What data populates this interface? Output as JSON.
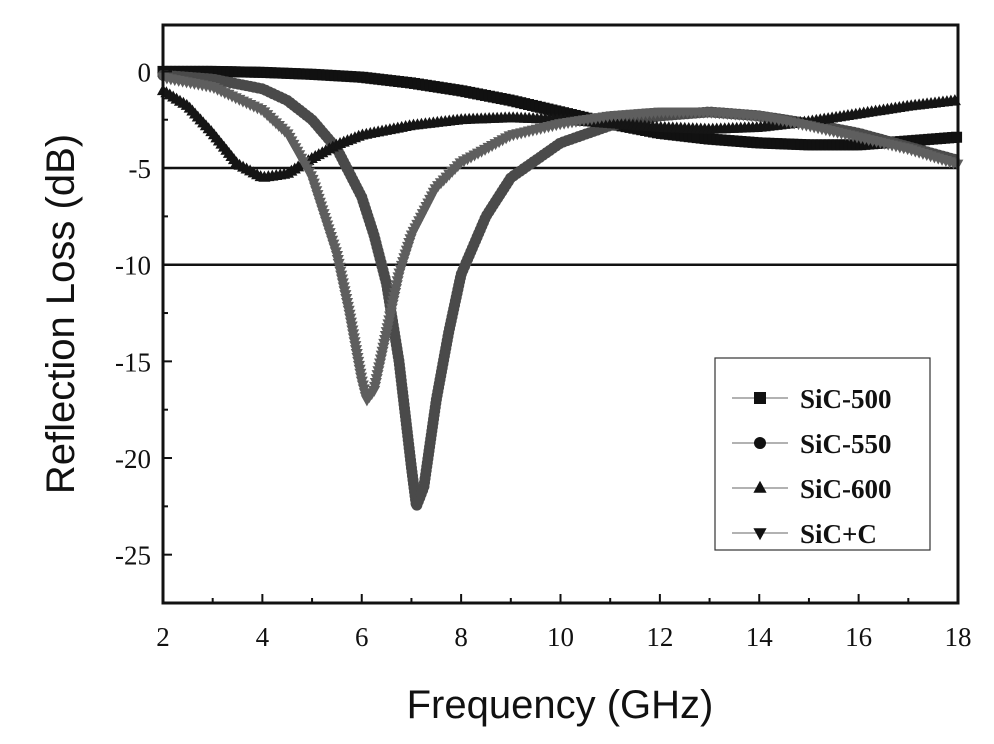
{
  "chart_data": {
    "type": "line",
    "title": "",
    "xlabel": "Frequency (GHz)",
    "ylabel": "Reflection Loss (dB)",
    "xlim": [
      2,
      18
    ],
    "ylim": [
      -27.5,
      2.4
    ],
    "xticks": [
      2,
      4,
      6,
      8,
      10,
      12,
      14,
      16,
      18
    ],
    "xtick_labels": [
      "2",
      "4",
      "6",
      "8",
      "10",
      "12",
      "14",
      "16",
      "18"
    ],
    "yticks": [
      0,
      -5,
      -10,
      -15,
      -20,
      -25
    ],
    "ytick_labels": [
      "0",
      "-5",
      "-10",
      "-15",
      "-20",
      "-25"
    ],
    "reference_lines_y": [
      -5,
      -10
    ],
    "grid": false,
    "legend_position": "bottom-right",
    "series": [
      {
        "name": "SiC-500",
        "marker": "square",
        "color": "#111111",
        "x": [
          2,
          3,
          4,
          5,
          6,
          7,
          8,
          9,
          10,
          11,
          12,
          13,
          14,
          15,
          16,
          17,
          18
        ],
        "y": [
          0,
          0,
          -0.05,
          -0.15,
          -0.3,
          -0.6,
          -1.0,
          -1.5,
          -2.1,
          -2.7,
          -3.2,
          -3.5,
          -3.7,
          -3.8,
          -3.8,
          -3.6,
          -3.4
        ]
      },
      {
        "name": "SiC-550",
        "marker": "circle",
        "color": "#4a4a4a",
        "x": [
          2,
          3,
          4,
          4.5,
          5,
          5.5,
          6,
          6.25,
          6.5,
          6.75,
          7,
          7.1,
          7.25,
          7.5,
          7.75,
          8,
          8.5,
          9,
          10,
          11,
          12,
          13,
          14,
          15,
          16,
          17,
          18
        ],
        "y": [
          -0.2,
          -0.4,
          -0.9,
          -1.5,
          -2.5,
          -4.0,
          -6.5,
          -8.5,
          -11,
          -15,
          -20.5,
          -22.5,
          -21.5,
          -17,
          -13.5,
          -10.5,
          -7.5,
          -5.5,
          -3.7,
          -2.8,
          -2.3,
          -2.1,
          -2.3,
          -2.7,
          -3.2,
          -3.9,
          -4.6
        ]
      },
      {
        "name": "SiC-600",
        "marker": "triangle-up",
        "color": "#151515",
        "x": [
          2,
          2.5,
          3,
          3.5,
          4,
          4.5,
          5,
          5.5,
          6,
          7,
          8,
          9,
          10,
          11,
          12,
          13,
          14,
          15,
          16,
          17,
          18
        ],
        "y": [
          -1.0,
          -1.8,
          -3.2,
          -4.8,
          -5.5,
          -5.3,
          -4.5,
          -3.8,
          -3.3,
          -2.8,
          -2.5,
          -2.4,
          -2.5,
          -2.7,
          -2.9,
          -3.0,
          -2.9,
          -2.6,
          -2.2,
          -1.8,
          -1.5
        ]
      },
      {
        "name": "SiC+C",
        "marker": "triangle-down",
        "color": "#5e5e5e",
        "x": [
          2,
          3,
          4,
          4.5,
          5,
          5.5,
          5.75,
          6,
          6.1,
          6.25,
          6.5,
          6.75,
          7,
          7.5,
          8,
          9,
          10,
          11,
          12,
          13,
          14,
          15,
          16,
          17,
          18
        ],
        "y": [
          -0.3,
          -0.8,
          -2.0,
          -3.2,
          -5.5,
          -9.5,
          -12.5,
          -16,
          -17,
          -16.5,
          -13.5,
          -10.5,
          -8.5,
          -6,
          -4.7,
          -3.3,
          -2.7,
          -2.3,
          -2.1,
          -2.1,
          -2.3,
          -2.8,
          -3.4,
          -4.0,
          -4.8
        ]
      }
    ]
  }
}
